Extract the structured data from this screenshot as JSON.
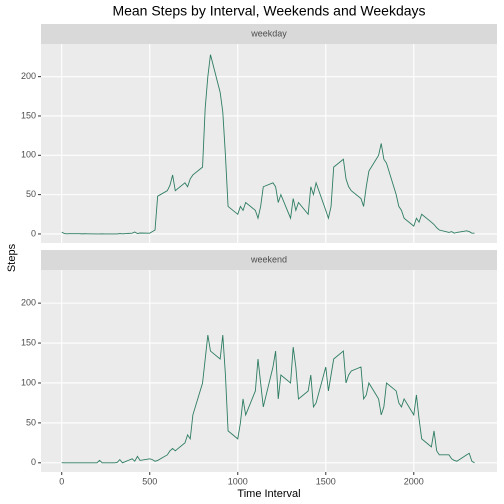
{
  "chart_data": {
    "type": "line",
    "title": "Mean Steps by Interval, Weekends and Weekdays",
    "xlabel": "Time Interval",
    "ylabel": "Steps",
    "x": [
      0,
      15,
      30,
      45,
      100,
      115,
      130,
      145,
      200,
      215,
      230,
      245,
      300,
      315,
      330,
      345,
      400,
      415,
      430,
      445,
      500,
      515,
      530,
      545,
      600,
      615,
      630,
      645,
      700,
      715,
      730,
      745,
      800,
      815,
      830,
      845,
      900,
      915,
      930,
      945,
      1000,
      1015,
      1030,
      1045,
      1100,
      1115,
      1130,
      1145,
      1200,
      1215,
      1230,
      1245,
      1300,
      1315,
      1330,
      1345,
      1400,
      1415,
      1430,
      1445,
      1500,
      1515,
      1530,
      1545,
      1600,
      1615,
      1630,
      1645,
      1700,
      1715,
      1730,
      1745,
      1800,
      1815,
      1830,
      1845,
      1900,
      1915,
      1930,
      1945,
      2000,
      2015,
      2030,
      2045,
      2100,
      2115,
      2130,
      2145,
      2200,
      2215,
      2230,
      2245,
      2300,
      2315,
      2330,
      2345
    ],
    "series": [
      {
        "name": "weekday",
        "color": "#2e7d62",
        "values": [
          2.3,
          0.5,
          0.2,
          0.3,
          0.4,
          0.1,
          0.3,
          0.2,
          0,
          0,
          0.1,
          0,
          0,
          0,
          0.5,
          0.2,
          1.0,
          2.5,
          0.5,
          1.2,
          1,
          3,
          5,
          48,
          55,
          62,
          75,
          55,
          65,
          60,
          70,
          75,
          85,
          160,
          200,
          228,
          180,
          155,
          100,
          35,
          25,
          35,
          30,
          40,
          30,
          20,
          35,
          60,
          65,
          60,
          40,
          50,
          20,
          45,
          30,
          40,
          25,
          60,
          50,
          65,
          30,
          20,
          35,
          85,
          95,
          70,
          60,
          55,
          45,
          35,
          60,
          80,
          100,
          115,
          95,
          90,
          50,
          35,
          30,
          20,
          10,
          20,
          15,
          25,
          15,
          12,
          8,
          5,
          2,
          3,
          1,
          2,
          4,
          3,
          1,
          1
        ]
      },
      {
        "name": "weekend",
        "color": "#2e7d62",
        "values": [
          0.2,
          0,
          0,
          0,
          0,
          0,
          0,
          0,
          0,
          3,
          0,
          0,
          0,
          0.5,
          4,
          0,
          5,
          2,
          8,
          3,
          5,
          4,
          2,
          3,
          10,
          15,
          18,
          15,
          25,
          35,
          30,
          60,
          100,
          130,
          160,
          140,
          130,
          160,
          110,
          40,
          30,
          50,
          80,
          60,
          90,
          130,
          100,
          70,
          120,
          140,
          80,
          110,
          100,
          145,
          120,
          80,
          90,
          110,
          70,
          75,
          120,
          90,
          110,
          130,
          140,
          100,
          110,
          115,
          120,
          80,
          85,
          100,
          80,
          60,
          70,
          100,
          90,
          75,
          70,
          80,
          60,
          85,
          55,
          30,
          20,
          40,
          15,
          10,
          10,
          5,
          3,
          2,
          10,
          12,
          2,
          0
        ]
      }
    ],
    "xlim": [
      -117.75,
      2472.75
    ],
    "xticks": [
      0,
      500,
      1000,
      1500,
      2000
    ],
    "ylim": [
      -11.5,
      241.5
    ],
    "yticks": [
      0,
      50,
      100,
      150,
      200
    ],
    "grid": true
  }
}
